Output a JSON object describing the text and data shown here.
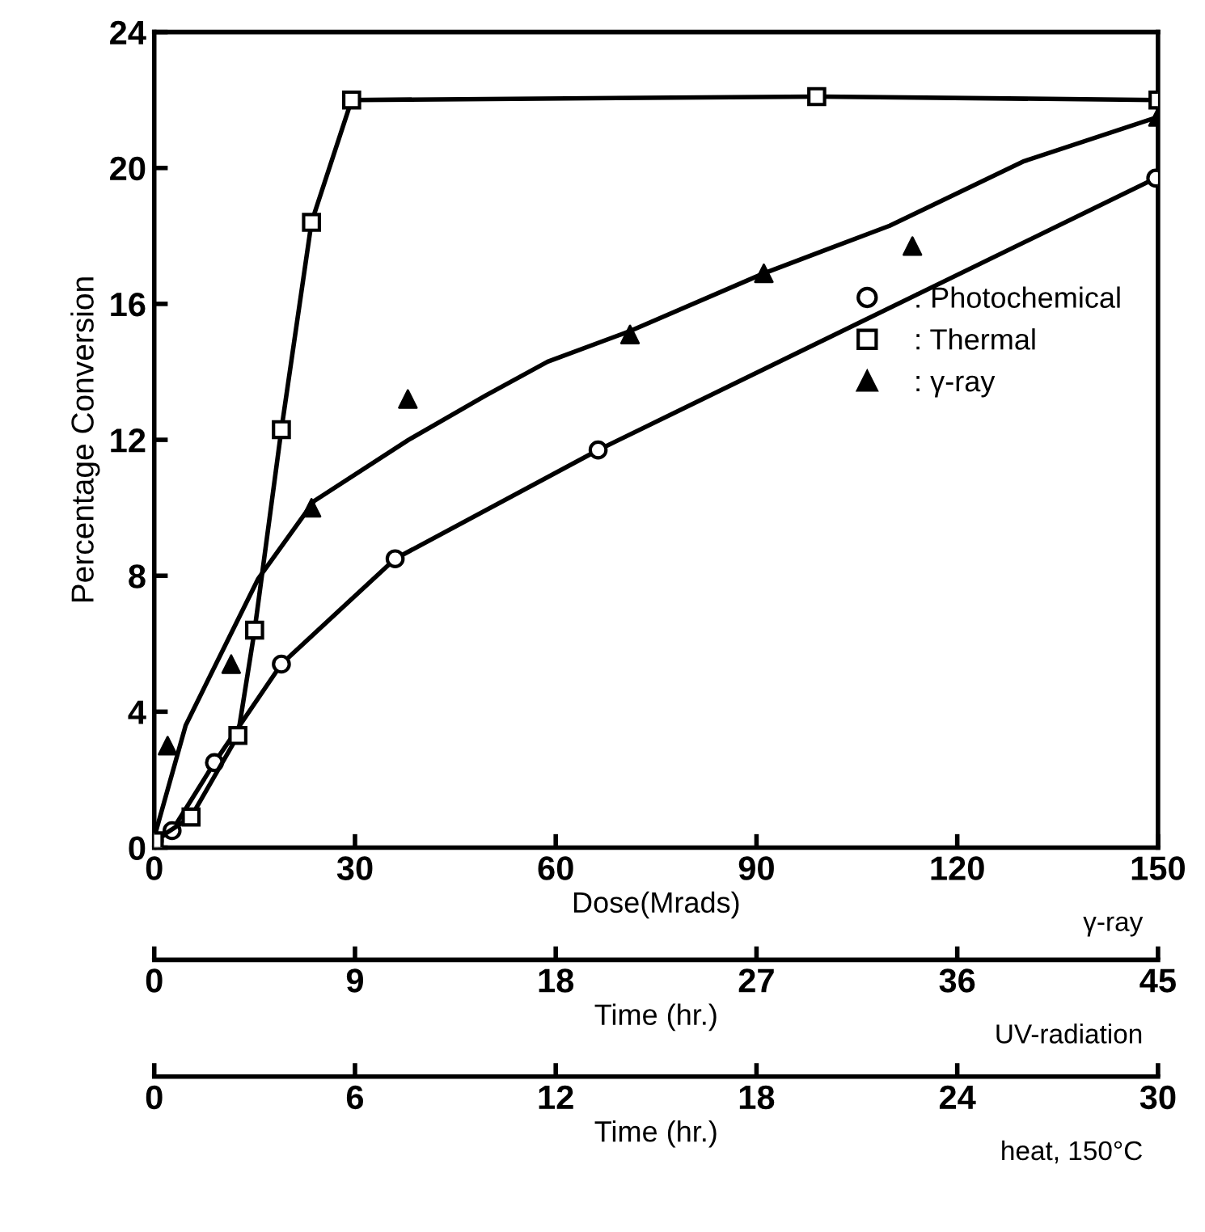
{
  "chart_data": [
    {
      "type": "line",
      "ylabel": "Percentage Conversion",
      "xlabel": "Dose(Mrads)",
      "xlim": [
        0,
        150
      ],
      "xticks": [
        0,
        30,
        60,
        90,
        120,
        150
      ],
      "ylim": [
        0,
        24
      ],
      "yticks": [
        0,
        4,
        8,
        12,
        16,
        20,
        24
      ],
      "annotations": [
        "γ-ray"
      ],
      "legend": "center right",
      "grid": false,
      "series": [
        {
          "name": ": γ-ray",
          "type": "scatter",
          "marker": "triangle",
          "color": "#000000",
          "x": [
            2.0,
            11.5,
            23.5,
            37.9,
            71.1,
            91.1,
            113.3,
            150
          ],
          "values": [
            3.0,
            5.4,
            10.0,
            13.2,
            15.1,
            16.9,
            17.7,
            21.5
          ]
        },
        {
          "marker": "none",
          "color": "#000000",
          "x": [
            0,
            4.7,
            15.5,
            23.9,
            38,
            49.5,
            58.8,
            71.1,
            91.1,
            109.9,
            130,
            150
          ],
          "values": [
            0.3,
            3.6,
            7.9,
            10.2,
            12.0,
            13.3,
            14.3,
            15.2,
            16.9,
            18.3,
            20.2,
            21.5
          ]
        }
      ]
    },
    {
      "type": "line",
      "xlabel": "Time (hr.)",
      "xlim": [
        0,
        45
      ],
      "xticks": [
        0,
        9,
        18,
        27,
        36,
        45
      ],
      "ylim": [
        0,
        24
      ],
      "tick_labels": "x",
      "annotations": [
        "UV-radiation"
      ],
      "series": [
        {
          "name": ": Photochemical",
          "marker": "circle",
          "color": "#000000",
          "x": [
            0,
            0.8,
            2.7,
            5.7,
            10.8,
            19.9,
            44.9
          ],
          "values": [
            0.2,
            0.5,
            2.5,
            5.4,
            8.5,
            11.7,
            19.7
          ]
        }
      ]
    },
    {
      "type": "line",
      "xlabel": "Time (hr.)",
      "xlim": [
        0,
        30
      ],
      "xticks": [
        0,
        6,
        12,
        18,
        24,
        30
      ],
      "ylim": [
        0,
        24
      ],
      "tick_labels": "x",
      "annotations": [
        "heat, 150°C"
      ],
      "series": [
        {
          "name": ": Thermal",
          "marker": "square",
          "color": "#000000",
          "x": [
            0,
            1.1,
            2.5,
            3.0,
            3.8,
            4.7,
            5.9,
            19.8,
            30
          ],
          "values": [
            0.2,
            0.9,
            3.3,
            6.4,
            12.3,
            18.4,
            22.0,
            22.1,
            22.0
          ]
        }
      ]
    }
  ]
}
